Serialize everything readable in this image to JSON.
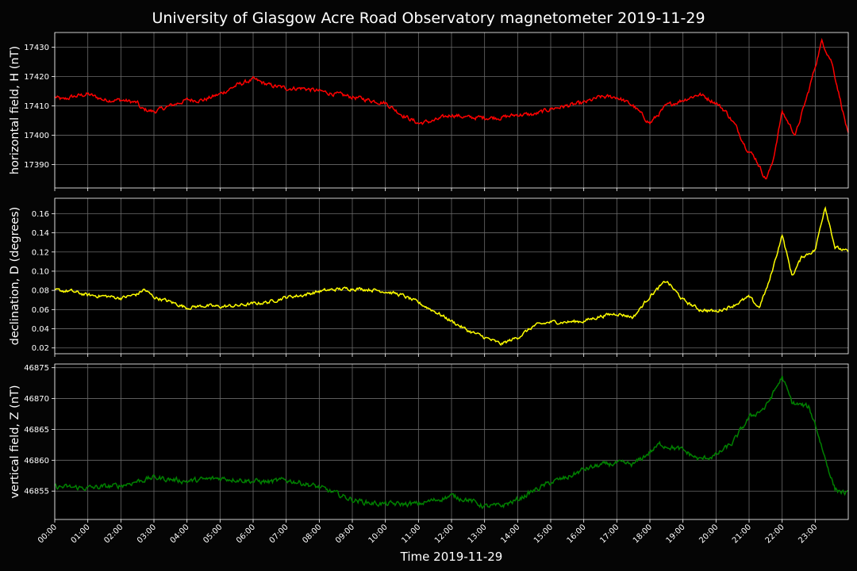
{
  "chart_data": {
    "type": "line",
    "title": "University of Glasgow Acre Road Observatory magnetometer 2019-11-29",
    "xlabel": "Time 2019-11-29",
    "x_ticks": [
      "00:00",
      "01:00",
      "02:00",
      "03:00",
      "04:00",
      "05:00",
      "06:00",
      "07:00",
      "08:00",
      "09:00",
      "10:00",
      "11:00",
      "12:00",
      "13:00",
      "14:00",
      "15:00",
      "16:00",
      "17:00",
      "18:00",
      "19:00",
      "20:00",
      "21:00",
      "22:00",
      "23:00"
    ],
    "x_range_hours": [
      0,
      24
    ],
    "grid": true,
    "panels": [
      {
        "ylabel": "horizontal field, H (nT)",
        "color": "#ff0000",
        "ylim": [
          17382,
          17435
        ],
        "yticks": [
          "17390",
          "17400",
          "17410",
          "17420",
          "17430"
        ],
        "noise": 0.6,
        "x": [
          0,
          0.25,
          0.5,
          1,
          1.5,
          2,
          2.5,
          2.6,
          3,
          3.5,
          4,
          4.5,
          5,
          5.5,
          6,
          6.5,
          7,
          7.5,
          8,
          8.5,
          9,
          9.5,
          10,
          10.5,
          11,
          11.5,
          12,
          12.5,
          13,
          13.5,
          14,
          14.5,
          15,
          15.5,
          16,
          16.5,
          17,
          17.5,
          18,
          18.5,
          19,
          19.5,
          20,
          20.3,
          20.6,
          20.9,
          21.2,
          21.5,
          21.7,
          22,
          22.4,
          22.8,
          23.2,
          23.5,
          23.8,
          24
        ],
        "y": [
          17413,
          17412,
          17413,
          17414,
          17412,
          17412,
          17411,
          17409,
          17408,
          17410,
          17412,
          17412,
          17414,
          17417,
          17419,
          17417,
          17416,
          17416,
          17415,
          17414,
          17413,
          17412,
          17411,
          17407,
          17404,
          17405,
          17407,
          17406,
          17406,
          17406,
          17407,
          17407,
          17409,
          17410,
          17411,
          17413,
          17413,
          17410,
          17404,
          17410,
          17412,
          17414,
          17411,
          17408,
          17403,
          17396,
          17392,
          17385,
          17390,
          17408,
          17400,
          17415,
          17432,
          17425,
          17410,
          17400
        ]
      },
      {
        "ylabel": "declination, D (degrees)",
        "color": "#ffff00",
        "ylim": [
          0.014,
          0.176
        ],
        "yticks": [
          "0.02",
          "0.04",
          "0.06",
          "0.08",
          "0.10",
          "0.12",
          "0.14",
          "0.16"
        ],
        "noise": 0.0015,
        "x": [
          0,
          0.5,
          1,
          1.5,
          2,
          2.5,
          2.7,
          3,
          3.5,
          4,
          4.5,
          5,
          5.5,
          6,
          6.5,
          7,
          7.5,
          8,
          8.5,
          9,
          9.5,
          10,
          10.5,
          11,
          11.5,
          12,
          12.5,
          13,
          13.5,
          14,
          14.5,
          15,
          15.5,
          16,
          16.5,
          17,
          17.5,
          18,
          18.5,
          19,
          19.5,
          20,
          20.5,
          21,
          21.3,
          21.6,
          22,
          22.3,
          22.6,
          23,
          23.3,
          23.6,
          24
        ],
        "y": [
          0.08,
          0.079,
          0.075,
          0.074,
          0.072,
          0.076,
          0.081,
          0.073,
          0.068,
          0.062,
          0.064,
          0.063,
          0.064,
          0.066,
          0.068,
          0.073,
          0.075,
          0.079,
          0.081,
          0.082,
          0.081,
          0.079,
          0.075,
          0.067,
          0.058,
          0.048,
          0.038,
          0.031,
          0.024,
          0.031,
          0.043,
          0.047,
          0.047,
          0.048,
          0.053,
          0.056,
          0.052,
          0.074,
          0.09,
          0.07,
          0.06,
          0.058,
          0.064,
          0.073,
          0.062,
          0.088,
          0.138,
          0.095,
          0.115,
          0.122,
          0.168,
          0.125,
          0.12
        ]
      },
      {
        "ylabel": "vertical field, Z (nT)",
        "color": "#008000",
        "ylim": [
          46850.4,
          46875.6
        ],
        "yticks": [
          "46855",
          "46860",
          "46865",
          "46870",
          "46875"
        ],
        "noise": 0.35,
        "x": [
          0,
          1,
          2,
          2.5,
          3,
          4,
          5,
          5.5,
          6,
          6.5,
          7,
          7.5,
          8,
          8.5,
          9,
          9.5,
          10,
          11,
          12,
          12.5,
          13,
          13.5,
          14,
          14.5,
          15,
          15.5,
          16,
          16.5,
          17,
          17.5,
          18,
          18.3,
          18.6,
          19,
          19.5,
          20,
          20.5,
          21,
          21.5,
          22,
          22.3,
          22.8,
          23,
          23.3,
          23.6,
          24
        ],
        "y": [
          46855.7,
          46855.5,
          46855.9,
          46856.6,
          46857.2,
          46856.6,
          46857.1,
          46856.9,
          46856.6,
          46856.5,
          46856.8,
          46856.3,
          46855.6,
          46854.6,
          46853.6,
          46853.1,
          46852.9,
          46852.9,
          46854.2,
          46853.6,
          46852.5,
          46852.6,
          46853.6,
          46855.1,
          46856.4,
          46857.2,
          46858.5,
          46859.2,
          46859.5,
          46859.3,
          46861.3,
          46862.6,
          46862.2,
          46861.6,
          46860.1,
          46860.8,
          46862.8,
          46866.9,
          46868.6,
          46873.5,
          46869.3,
          46868.6,
          46865.9,
          46860.3,
          46855.3,
          46854.5
        ]
      }
    ]
  }
}
